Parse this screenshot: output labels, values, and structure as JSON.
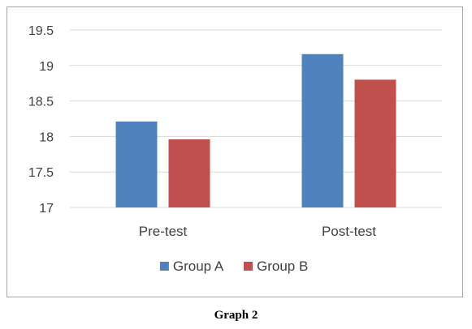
{
  "chart_data": {
    "type": "bar",
    "categories": [
      "Pre-test",
      "Post-test"
    ],
    "series": [
      {
        "name": "Group A",
        "values": [
          18.21,
          19.16
        ],
        "color": "#4f81bd"
      },
      {
        "name": "Group B",
        "values": [
          17.96,
          18.8
        ],
        "color": "#c0504d"
      }
    ],
    "ylim": [
      17,
      19.5
    ],
    "yticks": [
      17,
      17.5,
      18,
      18.5,
      19,
      19.5
    ],
    "ytick_labels": [
      "17",
      "17.5",
      "18",
      "18.5",
      "19",
      "19.5"
    ],
    "grid": true,
    "legend_position": "bottom",
    "gridline_color": "#d9d9d9",
    "text_color": "#404040"
  },
  "caption": "Graph 2"
}
